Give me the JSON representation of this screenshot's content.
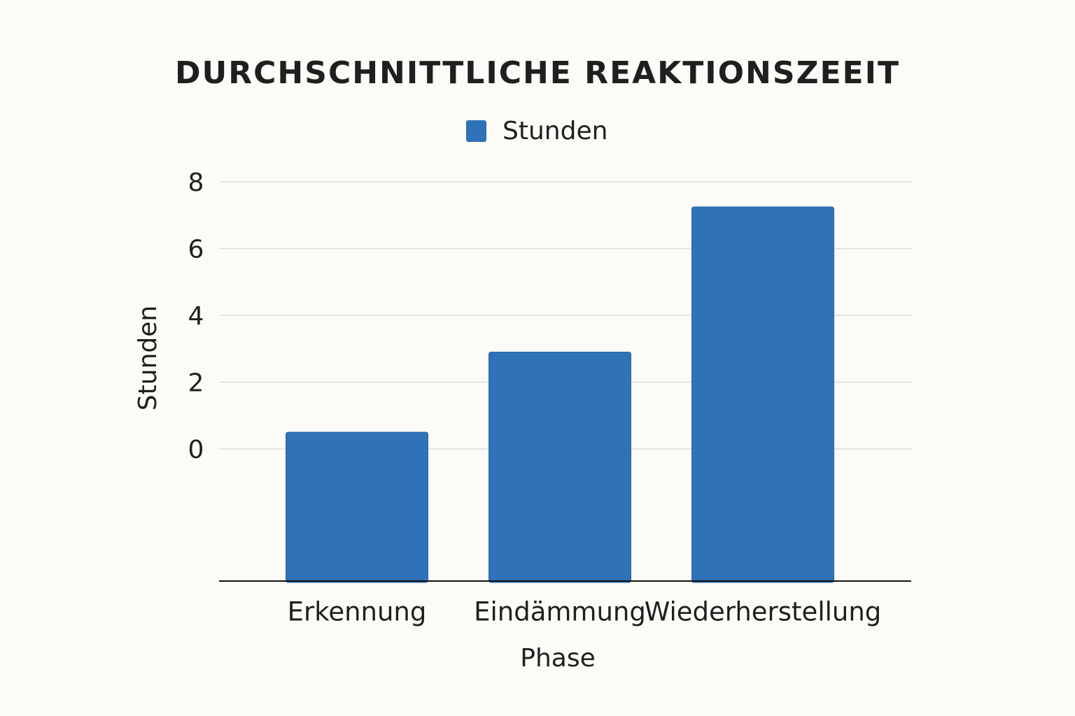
{
  "chart_data": {
    "type": "bar",
    "title": "DURCHSCHNITTLICHE REAKTIONSZEEIT",
    "categories": [
      "Erkennung",
      "Eindämmung",
      "Wiederherstellung"
    ],
    "series": [
      {
        "name": "Stunden",
        "color": "#2f72b8",
        "values": [
          0.5,
          2.9,
          7.25
        ]
      }
    ],
    "x_label": "Phase",
    "y_label": "Stunden",
    "ylim": [
      -4,
      8
    ],
    "yticks": [
      0,
      2,
      4,
      6,
      8
    ],
    "grid": true,
    "legend": "top"
  }
}
